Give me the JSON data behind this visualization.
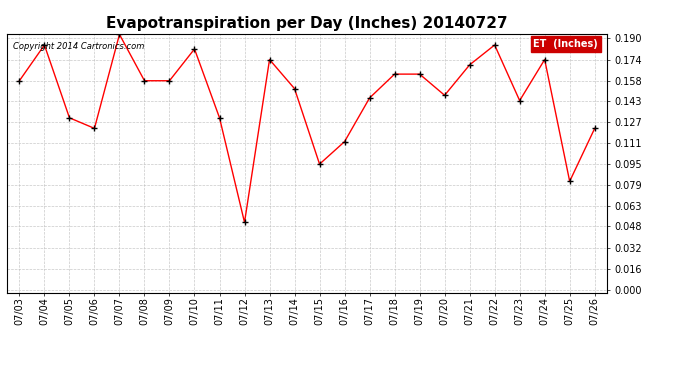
{
  "title": "Evapotranspiration per Day (Inches) 20140727",
  "copyright": "Copyright 2014 Cartronics.com",
  "legend_label": "ET  (Inches)",
  "dates": [
    "07/03",
    "07/04",
    "07/05",
    "07/06",
    "07/07",
    "07/08",
    "07/09",
    "07/10",
    "07/11",
    "07/12",
    "07/13",
    "07/14",
    "07/15",
    "07/16",
    "07/17",
    "07/18",
    "07/19",
    "07/20",
    "07/21",
    "07/22",
    "07/23",
    "07/24",
    "07/25",
    "07/26"
  ],
  "values": [
    0.158,
    0.185,
    0.13,
    0.122,
    0.193,
    0.158,
    0.158,
    0.182,
    0.13,
    0.051,
    0.174,
    0.152,
    0.095,
    0.112,
    0.145,
    0.163,
    0.163,
    0.147,
    0.17,
    0.185,
    0.143,
    0.174,
    0.082,
    0.122
  ],
  "line_color": "red",
  "marker_color": "black",
  "marker": "+",
  "marker_size": 4,
  "ylim": [
    -0.002,
    0.1935
  ],
  "yticks": [
    0.0,
    0.016,
    0.032,
    0.048,
    0.063,
    0.079,
    0.095,
    0.111,
    0.127,
    0.143,
    0.158,
    0.174,
    0.19
  ],
  "background_color": "#ffffff",
  "grid_color": "#bbbbbb",
  "title_fontsize": 11,
  "copyright_fontsize": 6,
  "tick_fontsize": 7,
  "legend_bg": "#cc0000",
  "legend_fg": "white"
}
